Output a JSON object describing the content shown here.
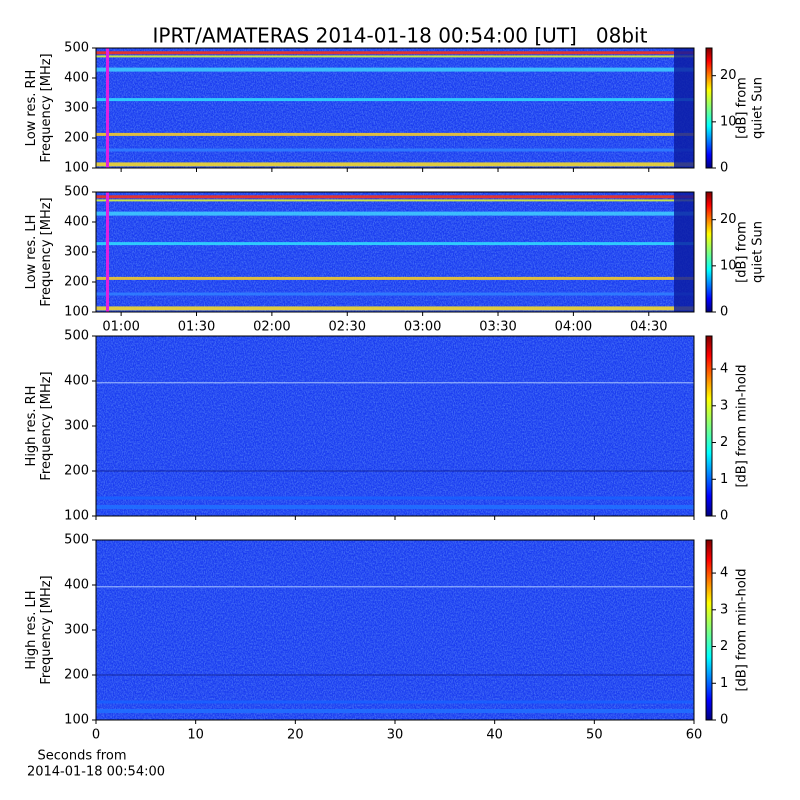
{
  "title": "IPRT/AMATERAS 2014-01-18 00:54:00 [UT]   08bit",
  "xlabel": [
    "Seconds from",
    "2014-01-18 00:54:00"
  ],
  "chart_data": [
    {
      "type": "spectrogram",
      "ylabel": [
        "Low res. RH",
        "Frequency [MHz]"
      ],
      "ylim": [
        100,
        500
      ],
      "yticks": [
        100,
        200,
        300,
        400,
        500
      ],
      "xlim": [
        "00:50",
        "04:48"
      ],
      "xticks": [
        "01:00",
        "01:30",
        "02:00",
        "02:30",
        "03:00",
        "03:30",
        "04:00",
        "04:30"
      ],
      "xticklabels": false,
      "colorbar": {
        "label": [
          "[dB] from",
          "quiet Sun"
        ],
        "lim": [
          0,
          26
        ],
        "ticks": [
          0,
          10,
          20
        ],
        "colormap": "jet"
      }
    },
    {
      "type": "spectrogram",
      "ylabel": [
        "Low res. LH",
        "Frequency [MHz]"
      ],
      "ylim": [
        100,
        500
      ],
      "yticks": [
        100,
        200,
        300,
        400,
        500
      ],
      "xlim": [
        "00:50",
        "04:48"
      ],
      "xticks": [
        "01:00",
        "01:30",
        "02:00",
        "02:30",
        "03:00",
        "03:30",
        "04:00",
        "04:30"
      ],
      "xticklabels": true,
      "colorbar": {
        "label": [
          "[dB] from",
          "quiet Sun"
        ],
        "lim": [
          0,
          26
        ],
        "ticks": [
          0,
          10,
          20
        ],
        "colormap": "jet"
      }
    },
    {
      "type": "spectrogram",
      "ylabel": [
        "High res. RH",
        "Frequency [MHz]"
      ],
      "ylim": [
        100,
        500
      ],
      "yticks": [
        100,
        200,
        300,
        400,
        500
      ],
      "xlim": [
        0,
        60
      ],
      "xticks": [
        0,
        10,
        20,
        30,
        40,
        50,
        60
      ],
      "xticklabels": false,
      "colorbar": {
        "label": [
          "[dB] from min-hold"
        ],
        "lim": [
          0,
          4.9
        ],
        "ticks": [
          0,
          1,
          2,
          3,
          4
        ],
        "colormap": "jet"
      }
    },
    {
      "type": "spectrogram",
      "ylabel": [
        "High res. LH",
        "Frequency [MHz]"
      ],
      "ylim": [
        100,
        500
      ],
      "yticks": [
        100,
        200,
        300,
        400,
        500
      ],
      "xlim": [
        0,
        60
      ],
      "xticks": [
        0,
        10,
        20,
        30,
        40,
        50,
        60
      ],
      "xticklabels": true,
      "colorbar": {
        "label": [
          "[dB] from min-hold"
        ],
        "lim": [
          0,
          4.9
        ],
        "ticks": [
          0,
          1,
          2,
          3,
          4
        ],
        "colormap": "jet"
      }
    }
  ]
}
